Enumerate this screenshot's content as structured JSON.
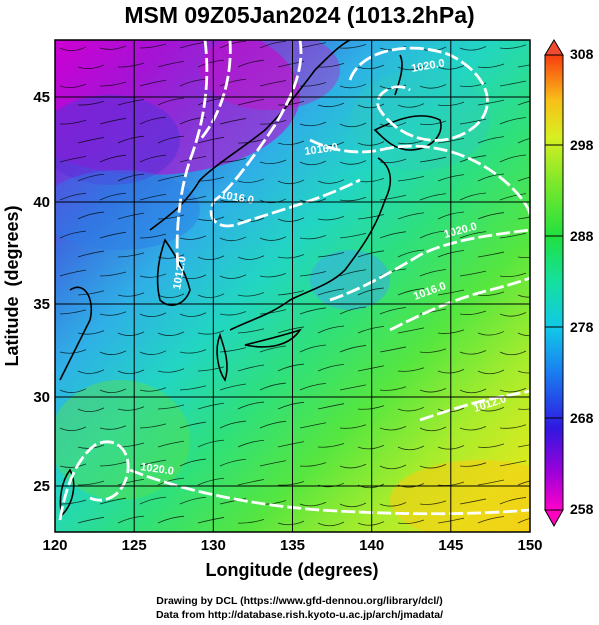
{
  "title": "MSM 09Z05Jan2024 (1013.2hPa)",
  "axes": {
    "xlabel": "Longitude (degrees)",
    "ylabel": "Latitude  (degrees)",
    "xticks": [
      "120",
      "125",
      "130",
      "135",
      "140",
      "145",
      "150"
    ],
    "yticks": [
      "25",
      "30",
      "35",
      "40",
      "45"
    ]
  },
  "colorbar": {
    "labels": [
      "308",
      "298",
      "288",
      "278",
      "268",
      "258"
    ]
  },
  "contours": {
    "labels": [
      "1020.0",
      "1016.0",
      "1016.0",
      "1012.0",
      "1020.0",
      "1016.0",
      "1012.0",
      "1020.0"
    ]
  },
  "credits": {
    "line1": "Drawing by DCL (https://www.gfd-dennou.org/library/dcl/)",
    "line2": "Data from http://database.rish.kyoto-u.ac.jp/arch/jmadata/"
  }
}
